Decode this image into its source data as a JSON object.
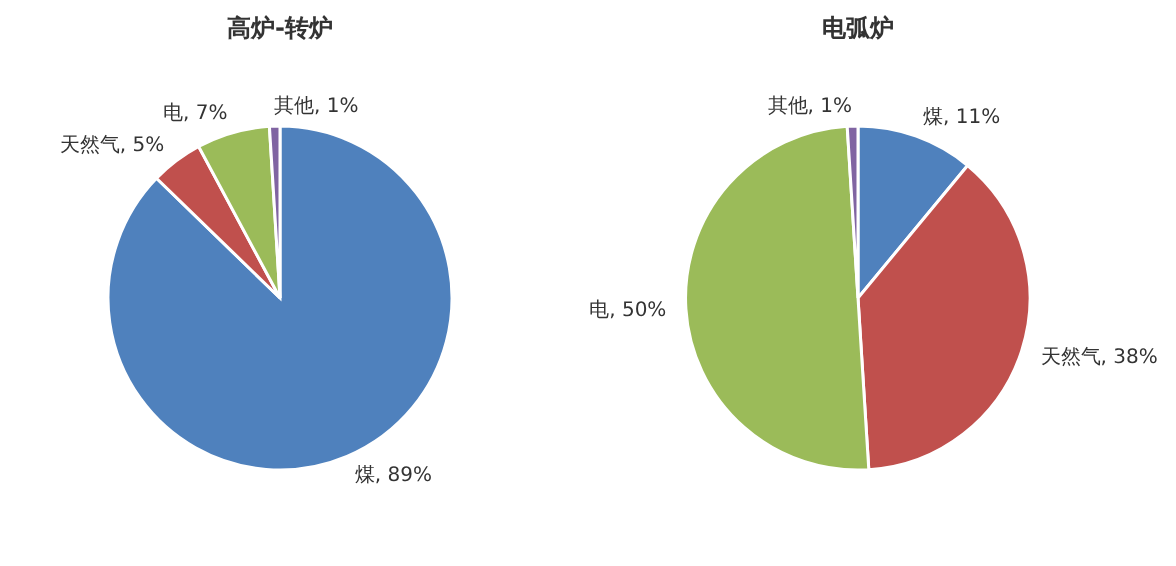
{
  "chart_data": [
    {
      "type": "pie",
      "title": "高炉-转炉",
      "categories": [
        "煤",
        "天然气",
        "电",
        "其他"
      ],
      "values": [
        89,
        5,
        7,
        1
      ],
      "value_labels": [
        "89%",
        "5%",
        "7%",
        "1%"
      ],
      "colors": [
        "#4f81bd",
        "#c0504d",
        "#9bbb59",
        "#8064a2"
      ],
      "legend": false
    },
    {
      "type": "pie",
      "title": "电弧炉",
      "categories": [
        "煤",
        "天然气",
        "电",
        "其他"
      ],
      "values": [
        11,
        38,
        50,
        1
      ],
      "value_labels": [
        "11%",
        "38%",
        "50%",
        "1%"
      ],
      "colors": [
        "#4f81bd",
        "#c0504d",
        "#9bbb59",
        "#8064a2"
      ],
      "legend": false
    }
  ]
}
